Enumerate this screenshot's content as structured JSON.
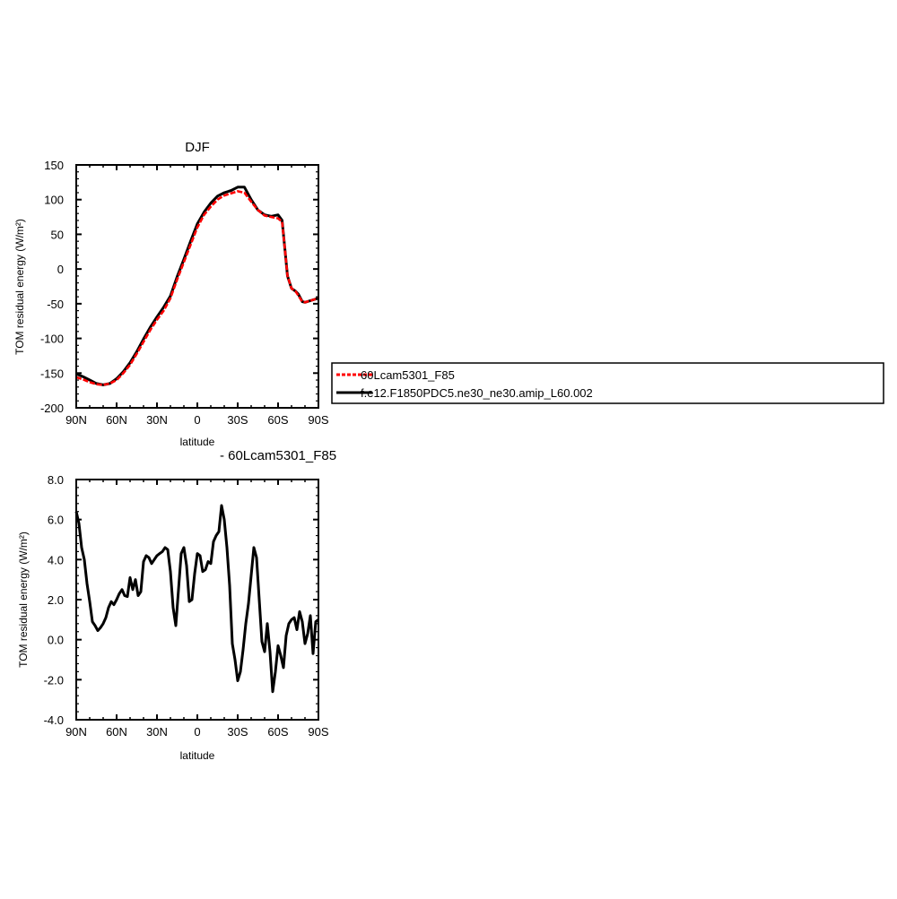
{
  "chart_data": [
    {
      "type": "line",
      "title": "DJF",
      "xlabel": "latitude",
      "ylabel": "TOM residual energy (W/m²)",
      "xlim": [
        90,
        -90
      ],
      "ylim": [
        -200,
        150
      ],
      "x_ticks": [
        {
          "value": 90,
          "label": "90N"
        },
        {
          "value": 60,
          "label": "60N"
        },
        {
          "value": 30,
          "label": "30N"
        },
        {
          "value": 0,
          "label": "0"
        },
        {
          "value": -30,
          "label": "30S"
        },
        {
          "value": -60,
          "label": "60S"
        },
        {
          "value": -90,
          "label": "90S"
        }
      ],
      "y_ticks": [
        {
          "value": 150,
          "label": "150"
        },
        {
          "value": 100,
          "label": "100"
        },
        {
          "value": 50,
          "label": "50"
        },
        {
          "value": 0,
          "label": "0"
        },
        {
          "value": -50,
          "label": "-50"
        },
        {
          "value": -100,
          "label": "-100"
        },
        {
          "value": -150,
          "label": "-150"
        },
        {
          "value": -200,
          "label": "-200"
        }
      ],
      "x": [
        90,
        85,
        80,
        75,
        70,
        65,
        60,
        55,
        50,
        45,
        40,
        35,
        30,
        25,
        20,
        15,
        10,
        5,
        0,
        -5,
        -10,
        -15,
        -20,
        -25,
        -30,
        -35,
        -40,
        -45,
        -50,
        -55,
        -60,
        -63,
        -65,
        -67,
        -70,
        -73,
        -75,
        -78,
        -80,
        -85,
        -90
      ],
      "series": [
        {
          "name": "60Lcam5301_F85",
          "color": "#ff0000",
          "values": [
            -156,
            -159,
            -163,
            -166,
            -167,
            -165,
            -160,
            -150,
            -138,
            -122,
            -105,
            -88,
            -73,
            -60,
            -42,
            -15,
            10,
            35,
            60,
            78,
            90,
            100,
            106,
            109,
            112,
            110,
            97,
            85,
            77,
            75,
            73,
            68,
            30,
            -10,
            -28,
            -32,
            -38,
            -47,
            -48,
            -45,
            -42
          ]
        },
        {
          "name": "f.e12.F1850PDC5.ne30_ne30.amip_L60.002",
          "color": "#000000",
          "values": [
            -151,
            -155,
            -160,
            -165,
            -167,
            -165,
            -158,
            -148,
            -135,
            -119,
            -101,
            -84,
            -69,
            -55,
            -39,
            -11,
            14,
            40,
            65,
            82,
            95,
            105,
            110,
            113,
            118,
            118,
            100,
            85,
            78,
            76,
            78,
            70,
            30,
            -10,
            -28,
            -32,
            -36,
            -47,
            -48,
            -45,
            -42
          ]
        }
      ]
    },
    {
      "type": "line",
      "title": " - 60Lcam5301_F85",
      "xlabel": "latitude",
      "ylabel": "TOM residual energy (W/m²)",
      "xlim": [
        90,
        -90
      ],
      "ylim": [
        -4,
        8
      ],
      "x_ticks": [
        {
          "value": 90,
          "label": "90N"
        },
        {
          "value": 60,
          "label": "60N"
        },
        {
          "value": 30,
          "label": "30N"
        },
        {
          "value": 0,
          "label": "0"
        },
        {
          "value": -30,
          "label": "30S"
        },
        {
          "value": -60,
          "label": "60S"
        },
        {
          "value": -90,
          "label": "90S"
        }
      ],
      "y_ticks": [
        {
          "value": 8,
          "label": "8.0"
        },
        {
          "value": 6,
          "label": "6.0"
        },
        {
          "value": 4,
          "label": "4.0"
        },
        {
          "value": 2,
          "label": "2.0"
        },
        {
          "value": 0,
          "label": "0.0"
        },
        {
          "value": -2,
          "label": "-2.0"
        },
        {
          "value": -4,
          "label": "-4.0"
        }
      ],
      "x": [
        90,
        88,
        86,
        84,
        82,
        80,
        78,
        76,
        74,
        72,
        70,
        68,
        66,
        64,
        62,
        60,
        58,
        56,
        54,
        52,
        50,
        48,
        46,
        44,
        42,
        40,
        38,
        36,
        34,
        32,
        30,
        28,
        26,
        24,
        22,
        20,
        18,
        16,
        14,
        12,
        10,
        8,
        6,
        4,
        2,
        0,
        -2,
        -4,
        -6,
        -8,
        -10,
        -12,
        -14,
        -16,
        -18,
        -20,
        -22,
        -24,
        -26,
        -28,
        -30,
        -32,
        -34,
        -36,
        -38,
        -40,
        -42,
        -44,
        -46,
        -48,
        -50,
        -52,
        -54,
        -56,
        -58,
        -60,
        -62,
        -64,
        -66,
        -68,
        -70,
        -72,
        -74,
        -76,
        -78,
        -80,
        -82,
        -84,
        -86,
        -88,
        -90
      ],
      "series": [
        {
          "name": "",
          "color": "#000000",
          "values": [
            6.4,
            5.8,
            4.6,
            4.0,
            2.8,
            1.9,
            0.9,
            0.7,
            0.45,
            0.6,
            0.8,
            1.1,
            1.6,
            1.9,
            1.75,
            2.0,
            2.3,
            2.5,
            2.2,
            2.15,
            3.1,
            2.5,
            3.0,
            2.2,
            2.4,
            3.9,
            4.2,
            4.1,
            3.8,
            4.0,
            4.2,
            4.3,
            4.4,
            4.6,
            4.5,
            3.4,
            1.6,
            0.7,
            2.5,
            4.3,
            4.6,
            3.7,
            1.9,
            2.0,
            3.3,
            4.3,
            4.2,
            3.4,
            3.5,
            3.9,
            3.8,
            4.9,
            5.2,
            5.4,
            6.7,
            6.0,
            4.6,
            2.7,
            -0.2,
            -1.0,
            -2.05,
            -1.6,
            -0.5,
            0.8,
            1.8,
            3.2,
            4.6,
            4.1,
            2.0,
            -0.1,
            -0.6,
            0.8,
            -0.6,
            -2.6,
            -1.6,
            -0.3,
            -0.8,
            -1.4,
            0.2,
            0.8,
            1.0,
            1.1,
            0.5,
            1.4,
            0.9,
            -0.2,
            0.3,
            1.2,
            -0.7,
            0.9,
            1.0
          ]
        }
      ]
    }
  ],
  "legend": {
    "placement": "right",
    "entries": [
      {
        "label": "60Lcam5301_F85",
        "color": "#ff0000"
      },
      {
        "label": "f.e12.F1850PDC5.ne30_ne30.amip_L60.002",
        "color": "#000000"
      }
    ]
  }
}
